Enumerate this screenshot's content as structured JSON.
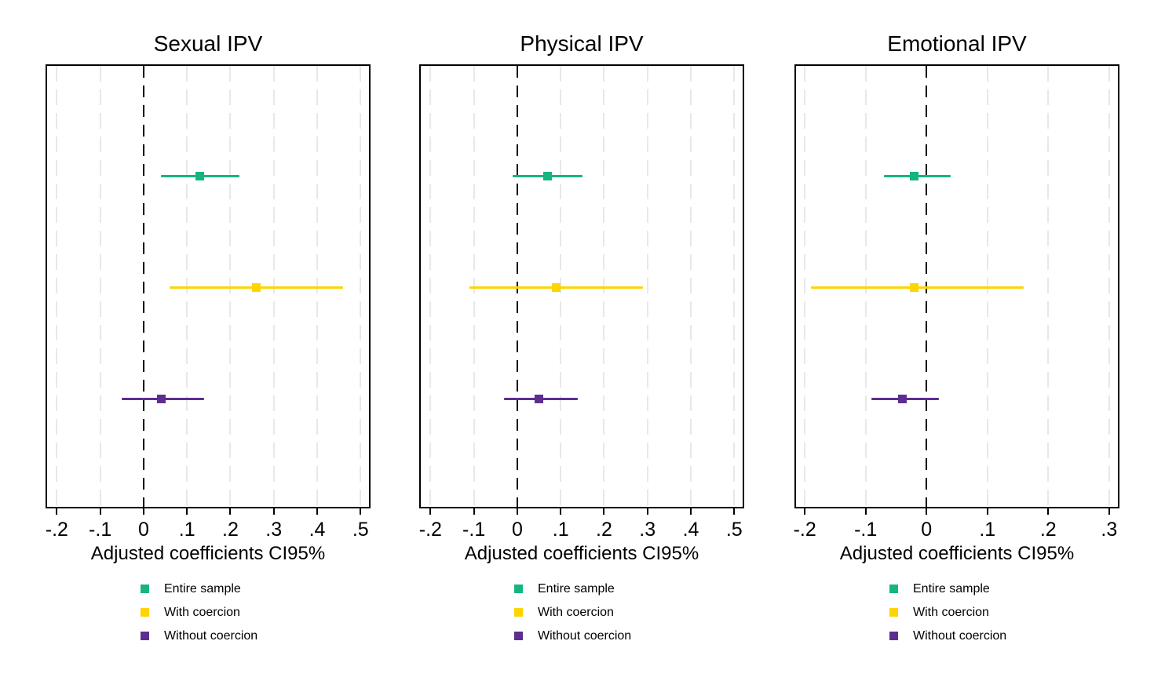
{
  "figure": {
    "background": "#ffffff",
    "frame_color": "#000000",
    "gridline_color": "#e8e8e8",
    "zero_line_color": "#000000"
  },
  "chart_data": [
    {
      "type": "scatter",
      "title": "Sexual IPV",
      "xlabel": "Adjusted coefficients CI95%",
      "xlim": [
        -0.226,
        0.523
      ],
      "xticks": [
        -0.2,
        -0.1,
        0,
        0.1,
        0.2,
        0.3,
        0.4,
        0.5
      ],
      "xtick_labels": [
        "-.2",
        "-.1",
        "0",
        ".1",
        ".2",
        ".3",
        ".4",
        ".5"
      ],
      "zero_line": 0,
      "grid": true,
      "legend_position": "bottom",
      "series": [
        {
          "name": "Entire sample",
          "color": "#14b57e",
          "estimate": 0.13,
          "ci_low": 0.04,
          "ci_high": 0.22
        },
        {
          "name": "With coercion",
          "color": "#fed402",
          "estimate": 0.26,
          "ci_low": 0.06,
          "ci_high": 0.46
        },
        {
          "name": "Without coercion",
          "color": "#5c2e91",
          "estimate": 0.04,
          "ci_low": -0.05,
          "ci_high": 0.14
        }
      ]
    },
    {
      "type": "scatter",
      "title": "Physical IPV",
      "xlabel": "Adjusted coefficients CI95%",
      "xlim": [
        -0.226,
        0.523
      ],
      "xticks": [
        -0.2,
        -0.1,
        0,
        0.1,
        0.2,
        0.3,
        0.4,
        0.5
      ],
      "xtick_labels": [
        "-.2",
        "-.1",
        "0",
        ".1",
        ".2",
        ".3",
        ".4",
        ".5"
      ],
      "zero_line": 0,
      "grid": true,
      "legend_position": "bottom",
      "series": [
        {
          "name": "Entire sample",
          "color": "#14b57e",
          "estimate": 0.07,
          "ci_low": -0.01,
          "ci_high": 0.15
        },
        {
          "name": "With coercion",
          "color": "#fed402",
          "estimate": 0.09,
          "ci_low": -0.11,
          "ci_high": 0.29
        },
        {
          "name": "Without coercion",
          "color": "#5c2e91",
          "estimate": 0.05,
          "ci_low": -0.03,
          "ci_high": 0.14
        }
      ]
    },
    {
      "type": "scatter",
      "title": "Emotional IPV",
      "xlabel": "Adjusted coefficients CI95%",
      "xlim": [
        -0.217,
        0.317
      ],
      "xticks": [
        -0.2,
        -0.1,
        0,
        0.1,
        0.2,
        0.3
      ],
      "xtick_labels": [
        "-.2",
        "-.1",
        "0",
        ".1",
        ".2",
        ".3"
      ],
      "zero_line": 0,
      "grid": true,
      "legend_position": "bottom",
      "series": [
        {
          "name": "Entire sample",
          "color": "#14b57e",
          "estimate": -0.02,
          "ci_low": -0.07,
          "ci_high": 0.04
        },
        {
          "name": "With coercion",
          "color": "#fed402",
          "estimate": -0.02,
          "ci_low": -0.19,
          "ci_high": 0.16
        },
        {
          "name": "Without coercion",
          "color": "#5c2e91",
          "estimate": -0.04,
          "ci_low": -0.09,
          "ci_high": 0.02
        }
      ]
    }
  ]
}
